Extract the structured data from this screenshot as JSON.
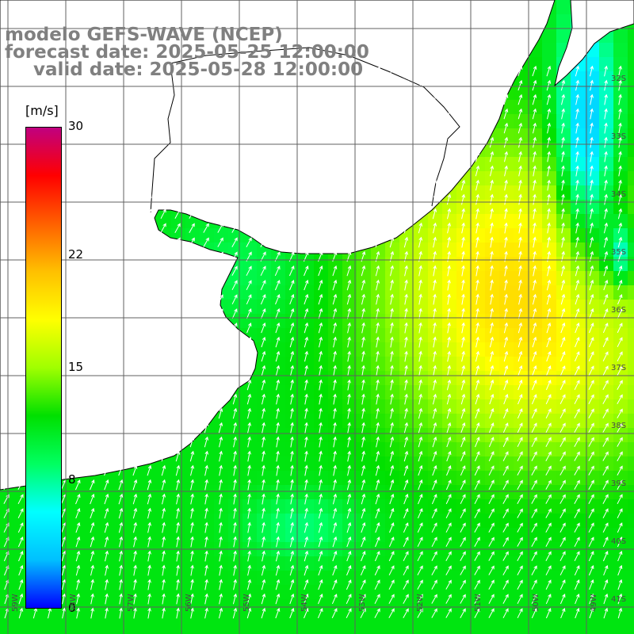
{
  "title": {
    "line1": "modelo GEFS-WAVE (NCEP)",
    "line2": "forecast date: 2025-05-25 12:00:00",
    "line3": "valid date: 2025-05-28 12:00:00"
  },
  "colorbar": {
    "units": "[m/s]",
    "min": 0,
    "max": 30,
    "ticks": [
      {
        "value": 30,
        "label": "30"
      },
      {
        "value": 22,
        "label": "22"
      },
      {
        "value": 15,
        "label": "15"
      },
      {
        "value": 8,
        "label": "8"
      },
      {
        "value": 0,
        "label": "0"
      }
    ],
    "stops": [
      "#0000ff",
      "#00c0ff",
      "#00ffff",
      "#00ff60",
      "#00e000",
      "#a0ff00",
      "#ffff00",
      "#ffc000",
      "#ff6000",
      "#ff0000",
      "#c00080"
    ]
  },
  "lat_labels": [
    "32S",
    "33S",
    "34S",
    "35S",
    "36S",
    "37S",
    "38S",
    "39S",
    "40S",
    "41S"
  ],
  "lon_labels": [
    "59W",
    "58W",
    "57W",
    "56W",
    "55W",
    "54W",
    "53W",
    "52W",
    "51W",
    "50W",
    "49W"
  ],
  "field": {
    "variable": "wind speed",
    "note_direction": "arrows pointing NNE over most of the area"
  },
  "colors": {
    "land": "#ffffff",
    "grid": "#606060",
    "coast": "#000000",
    "title": "#808080"
  }
}
